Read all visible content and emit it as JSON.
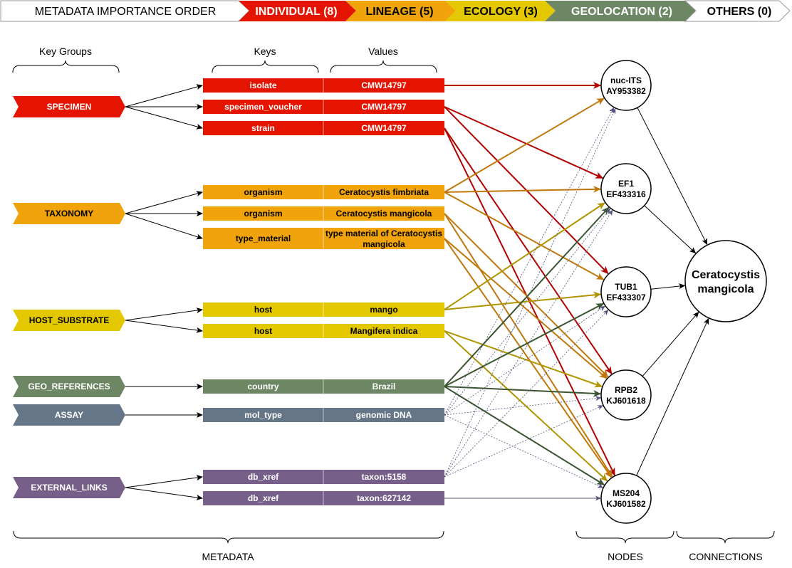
{
  "colors": {
    "individual": "#e51400",
    "lineage": "#f0a30a",
    "ecology": "#e3c800",
    "geolocation": "#6d8764",
    "assay": "#647687",
    "external": "#76608a",
    "edge_individual": "#b20000",
    "edge_lineage": "#c0770a",
    "edge_ecology": "#b09500",
    "edge_geo": "#3a5431",
    "edge_external": "#56517e"
  },
  "header": {
    "title": "METADATA IMPORTANCE ORDER",
    "categories": [
      {
        "label": "INDIVIDUAL (8)",
        "color": "#e51400",
        "text_color": "#ffffff"
      },
      {
        "label": "LINEAGE (5)",
        "color": "#f0a30a",
        "text_color": "#000000"
      },
      {
        "label": "ECOLOGY (3)",
        "color": "#e3c800",
        "text_color": "#000000"
      },
      {
        "label": "GEOLOCATION (2)",
        "color": "#6d8764",
        "text_color": "#ffffff"
      },
      {
        "label": "OTHERS (0)",
        "color": "#ffffff",
        "text_color": "#000000"
      }
    ]
  },
  "column_labels": {
    "key_groups": "Key Groups",
    "keys": "Keys",
    "values": "Values"
  },
  "key_groups": [
    {
      "label": "SPECIMEN",
      "color": "#e51400",
      "text_color": "#ffffff"
    },
    {
      "label": "TAXONOMY",
      "color": "#f0a30a",
      "text_color": "#000000"
    },
    {
      "label": "HOST_SUBSTRATE",
      "color": "#e3c800",
      "text_color": "#000000"
    },
    {
      "label": "GEO_REFERENCES",
      "color": "#6d8764",
      "text_color": "#ffffff"
    },
    {
      "label": "ASSAY",
      "color": "#647687",
      "text_color": "#ffffff"
    },
    {
      "label": "EXTERNAL_LINKS",
      "color": "#76608a",
      "text_color": "#ffffff"
    }
  ],
  "metadata_rows": [
    {
      "key": "isolate",
      "value": "CMW14797",
      "group": 0,
      "color": "#e51400",
      "text_color": "#ffffff"
    },
    {
      "key": "specimen_voucher",
      "value": "CMW14797",
      "group": 0,
      "color": "#e51400",
      "text_color": "#ffffff"
    },
    {
      "key": "strain",
      "value": "CMW14797",
      "group": 0,
      "color": "#e51400",
      "text_color": "#ffffff"
    },
    {
      "key": "organism",
      "value": "Ceratocystis fimbriata",
      "group": 1,
      "color": "#f0a30a",
      "text_color": "#000000"
    },
    {
      "key": "organism",
      "value": "Ceratocystis mangicola",
      "group": 1,
      "color": "#f0a30a",
      "text_color": "#000000"
    },
    {
      "key": "type_material",
      "value": "type material of Ceratocystis mangicola",
      "value_lines": [
        "type material of Ceratocystis",
        "mangicola"
      ],
      "group": 1,
      "color": "#f0a30a",
      "text_color": "#000000"
    },
    {
      "key": "host",
      "value": "mango",
      "group": 2,
      "color": "#e3c800",
      "text_color": "#000000"
    },
    {
      "key": "host",
      "value": "Mangifera indica",
      "group": 2,
      "color": "#e3c800",
      "text_color": "#000000"
    },
    {
      "key": "country",
      "value": "Brazil",
      "group": 3,
      "color": "#6d8764",
      "text_color": "#ffffff"
    },
    {
      "key": "mol_type",
      "value": "genomic DNA",
      "group": 4,
      "color": "#647687",
      "text_color": "#ffffff"
    },
    {
      "key": "db_xref",
      "value": "taxon:5158",
      "group": 5,
      "color": "#76608a",
      "text_color": "#ffffff"
    },
    {
      "key": "db_xref",
      "value": "taxon:627142",
      "group": 5,
      "color": "#76608a",
      "text_color": "#ffffff"
    }
  ],
  "nodes": [
    {
      "line1": "nuc-ITS",
      "line2": "AY953382"
    },
    {
      "line1": "EF1",
      "line2": "EF433316"
    },
    {
      "line1": "TUB1",
      "line2": "EF433307"
    },
    {
      "line1": "RPB2",
      "line2": "KJ601618"
    },
    {
      "line1": "MS204",
      "line2": "KJ601582"
    }
  ],
  "species_node": {
    "line1": "Ceratocystis",
    "line2": "mangicola"
  },
  "edges": [
    {
      "row": 0,
      "node": 0,
      "kind": "individual"
    },
    {
      "row": 1,
      "node": 1,
      "kind": "individual"
    },
    {
      "row": 1,
      "node": 2,
      "kind": "individual"
    },
    {
      "row": 2,
      "node": 3,
      "kind": "individual"
    },
    {
      "row": 2,
      "node": 4,
      "kind": "individual"
    },
    {
      "row": 3,
      "node": 0,
      "kind": "lineage"
    },
    {
      "row": 3,
      "node": 1,
      "kind": "lineage"
    },
    {
      "row": 3,
      "node": 2,
      "kind": "lineage"
    },
    {
      "row": 4,
      "node": 3,
      "kind": "lineage"
    },
    {
      "row": 4,
      "node": 4,
      "kind": "lineage"
    },
    {
      "row": 5,
      "node": 3,
      "kind": "lineage"
    },
    {
      "row": 5,
      "node": 4,
      "kind": "lineage"
    },
    {
      "row": 6,
      "node": 1,
      "kind": "ecology"
    },
    {
      "row": 6,
      "node": 2,
      "kind": "ecology"
    },
    {
      "row": 7,
      "node": 3,
      "kind": "ecology"
    },
    {
      "row": 7,
      "node": 4,
      "kind": "ecology"
    },
    {
      "row": 8,
      "node": 1,
      "kind": "geo"
    },
    {
      "row": 8,
      "node": 2,
      "kind": "geo"
    },
    {
      "row": 8,
      "node": 3,
      "kind": "geo"
    },
    {
      "row": 8,
      "node": 4,
      "kind": "geo"
    },
    {
      "row": 9,
      "node": 0,
      "kind": "external"
    },
    {
      "row": 9,
      "node": 1,
      "kind": "external"
    },
    {
      "row": 9,
      "node": 2,
      "kind": "external"
    },
    {
      "row": 9,
      "node": 3,
      "kind": "external"
    },
    {
      "row": 9,
      "node": 4,
      "kind": "external"
    },
    {
      "row": 10,
      "node": 0,
      "kind": "external"
    },
    {
      "row": 10,
      "node": 1,
      "kind": "external"
    },
    {
      "row": 10,
      "node": 2,
      "kind": "external"
    },
    {
      "row": 10,
      "node": 3,
      "kind": "external"
    },
    {
      "row": 11,
      "node": 4,
      "kind": "external"
    }
  ],
  "footer": {
    "metadata": "METADATA",
    "nodes": "NODES",
    "connections": "CONNECTIONS"
  }
}
